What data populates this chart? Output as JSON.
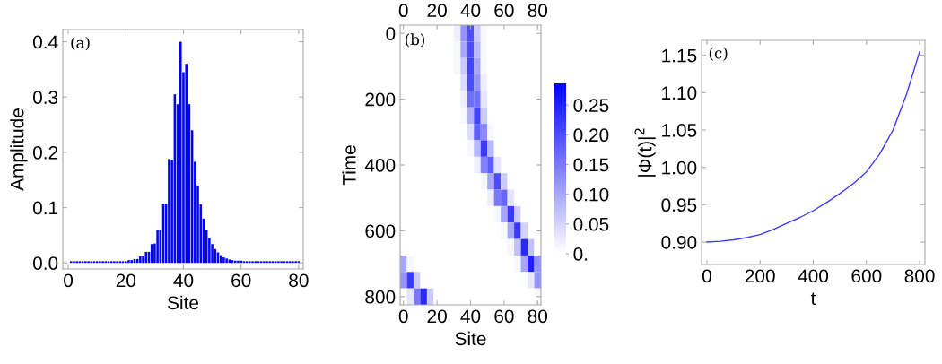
{
  "chart_data": [
    {
      "type": "bar",
      "xlabel": "Site",
      "ylabel": "Amplitude",
      "color": "#0000ff",
      "annotations": [
        "(a)"
      ],
      "x": [
        1,
        2,
        3,
        4,
        5,
        6,
        7,
        8,
        9,
        10,
        11,
        12,
        13,
        14,
        15,
        16,
        17,
        18,
        19,
        20,
        21,
        22,
        23,
        24,
        25,
        26,
        27,
        28,
        29,
        30,
        31,
        32,
        33,
        34,
        35,
        36,
        37,
        38,
        39,
        40,
        41,
        42,
        43,
        44,
        45,
        46,
        47,
        48,
        49,
        50,
        51,
        52,
        53,
        54,
        55,
        56,
        57,
        58,
        59,
        60,
        61,
        62,
        63,
        64,
        65,
        66,
        67,
        68,
        69,
        70,
        71,
        72,
        73,
        74,
        75,
        76,
        77,
        78,
        79,
        80
      ],
      "values": [
        0.003,
        0.003,
        0.003,
        0.003,
        0.003,
        0.003,
        0.003,
        0.003,
        0.003,
        0.003,
        0.003,
        0.003,
        0.003,
        0.003,
        0.003,
        0.003,
        0.003,
        0.003,
        0.003,
        0.003,
        0.005,
        0.005,
        0.007,
        0.007,
        0.012,
        0.012,
        0.02,
        0.02,
        0.034,
        0.035,
        0.06,
        0.06,
        0.107,
        0.107,
        0.188,
        0.186,
        0.305,
        0.287,
        0.4,
        0.345,
        0.36,
        0.287,
        0.24,
        0.183,
        0.14,
        0.106,
        0.08,
        0.06,
        0.045,
        0.034,
        0.025,
        0.019,
        0.014,
        0.01,
        0.008,
        0.006,
        0.005,
        0.004,
        0.004,
        0.004,
        0.003,
        0.003,
        0.003,
        0.003,
        0.003,
        0.003,
        0.003,
        0.003,
        0.003,
        0.003,
        0.003,
        0.003,
        0.003,
        0.003,
        0.003,
        0.003,
        0.003,
        0.003,
        0.003,
        0.003
      ],
      "xlim": [
        -1.9,
        81.6
      ],
      "xticks": [
        0,
        20,
        40,
        60,
        80
      ],
      "ylim": [
        -0.011,
        0.422
      ],
      "yticks": [
        {
          "value": 0,
          "label": "0.0"
        },
        0.1,
        0.2,
        0.3,
        0.4
      ]
    },
    {
      "type": "heatmap",
      "xlabel": "Site",
      "ylabel": "Time",
      "annotations": [
        "(b)"
      ],
      "color": "#0000ff",
      "categories": [
        "0",
        null,
        null,
        null,
        null,
        "20",
        null,
        null,
        null,
        null,
        "40",
        null,
        null,
        null,
        null,
        "60",
        null,
        null,
        null,
        null,
        "80"
      ],
      "y_categories": [
        "0",
        null,
        null,
        null,
        "200",
        null,
        null,
        null,
        "400",
        null,
        null,
        null,
        "600",
        null,
        null,
        null,
        "800"
      ],
      "cells": [
        [
          0,
          0,
          0,
          0,
          0,
          0,
          0,
          0,
          0.02,
          0.12,
          0.2,
          0.06,
          0.01,
          0,
          0,
          0,
          0,
          0,
          0,
          0,
          0
        ],
        [
          0,
          0,
          0,
          0,
          0,
          0,
          0,
          0,
          0.01,
          0.1,
          0.2,
          0.08,
          0.01,
          0,
          0,
          0,
          0,
          0,
          0,
          0,
          0
        ],
        [
          0,
          0,
          0,
          0,
          0,
          0,
          0,
          0,
          0.01,
          0.06,
          0.21,
          0.1,
          0.01,
          0,
          0,
          0,
          0,
          0,
          0,
          0,
          0
        ],
        [
          0,
          0,
          0,
          0,
          0,
          0,
          0,
          0,
          0,
          0.04,
          0.2,
          0.12,
          0.02,
          0,
          0,
          0,
          0,
          0,
          0,
          0,
          0
        ],
        [
          0,
          0,
          0,
          0,
          0,
          0,
          0,
          0,
          0,
          0.02,
          0.16,
          0.16,
          0.03,
          0,
          0,
          0,
          0,
          0,
          0,
          0,
          0
        ],
        [
          0,
          0,
          0,
          0,
          0,
          0,
          0,
          0,
          0,
          0.01,
          0.09,
          0.21,
          0.06,
          0,
          0,
          0,
          0,
          0,
          0,
          0,
          0
        ],
        [
          0,
          0,
          0,
          0,
          0,
          0,
          0,
          0,
          0,
          0,
          0.04,
          0.18,
          0.13,
          0.01,
          0,
          0,
          0,
          0,
          0,
          0,
          0
        ],
        [
          0,
          0,
          0,
          0,
          0,
          0,
          0,
          0,
          0,
          0,
          0.01,
          0.08,
          0.22,
          0.08,
          0,
          0,
          0,
          0,
          0,
          0,
          0
        ],
        [
          0,
          0,
          0,
          0,
          0,
          0,
          0,
          0,
          0,
          0,
          0,
          0.02,
          0.14,
          0.18,
          0.03,
          0,
          0,
          0,
          0,
          0,
          0
        ],
        [
          0,
          0,
          0,
          0,
          0,
          0,
          0,
          0,
          0,
          0,
          0,
          0,
          0.01,
          0.1,
          0.2,
          0.06,
          0,
          0,
          0,
          0,
          0
        ],
        [
          0,
          0,
          0,
          0,
          0,
          0,
          0,
          0,
          0,
          0,
          0,
          0,
          0,
          0.02,
          0.15,
          0.17,
          0.03,
          0,
          0,
          0,
          0
        ],
        [
          0,
          0,
          0,
          0,
          0,
          0,
          0,
          0,
          0,
          0,
          0,
          0,
          0,
          0,
          0.01,
          0.1,
          0.22,
          0.06,
          0,
          0,
          0
        ],
        [
          0,
          0,
          0,
          0,
          0,
          0,
          0,
          0,
          0,
          0,
          0,
          0,
          0,
          0,
          0,
          0.01,
          0.1,
          0.22,
          0.05,
          0,
          0
        ],
        [
          0,
          0,
          0,
          0,
          0,
          0,
          0,
          0,
          0,
          0,
          0,
          0,
          0,
          0,
          0,
          0,
          0.01,
          0.07,
          0.24,
          0.07,
          0
        ],
        [
          0.1,
          0.01,
          0,
          0,
          0,
          0,
          0,
          0,
          0,
          0,
          0,
          0,
          0,
          0,
          0,
          0,
          0,
          0.01,
          0.1,
          0.25,
          0.12
        ],
        [
          0.12,
          0.22,
          0.06,
          0,
          0,
          0,
          0,
          0,
          0,
          0,
          0,
          0,
          0,
          0,
          0,
          0,
          0,
          0,
          0,
          0.03,
          0.12
        ],
        [
          0,
          0.03,
          0.15,
          0.24,
          0.06,
          0,
          0,
          0,
          0,
          0,
          0,
          0,
          0,
          0,
          0,
          0,
          0,
          0,
          0,
          0,
          0.01
        ]
      ],
      "clim": [
        0,
        0.285
      ],
      "cticks": [
        {
          "value": 0,
          "label": "0."
        },
        0.05,
        {
          "value": 0.1,
          "label": "0.10"
        },
        0.15,
        {
          "value": 0.2,
          "label": "0.20"
        },
        0.25
      ]
    },
    {
      "type": "line",
      "xlabel": "t",
      "ylabel": "|Φ(t)|$^{2}$",
      "color": "#3a3aff",
      "annotations": [
        "(c)"
      ],
      "x": [
        0,
        50,
        100,
        150,
        200,
        250,
        300,
        350,
        400,
        450,
        500,
        550,
        600,
        650,
        700,
        750,
        800
      ],
      "values": [
        0.9,
        0.901,
        0.903,
        0.906,
        0.91,
        0.917,
        0.925,
        0.933,
        0.942,
        0.953,
        0.965,
        0.978,
        0.994,
        1.018,
        1.05,
        1.097,
        1.155
      ],
      "xlim": [
        -20,
        820
      ],
      "xticks": [
        0,
        200,
        400,
        600,
        800
      ],
      "ylim": [
        0.87,
        1.17
      ],
      "yticks": [
        {
          "value": 0.9,
          "label": "0.90"
        },
        0.95,
        {
          "value": 1.0,
          "label": "1.00"
        },
        1.05,
        {
          "value": 1.1,
          "label": "1.10"
        },
        1.15
      ]
    }
  ]
}
